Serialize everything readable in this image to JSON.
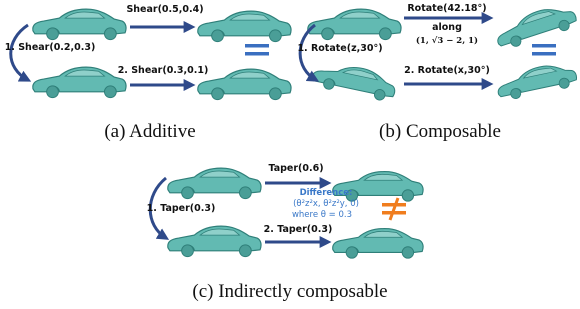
{
  "panels": [
    {
      "caption": "(a) Additive",
      "direct": "Shear(0.5,0.4)",
      "step1": "1. Shear(0.2,0.3)",
      "step2": "2. Shear(0.3,0.1)"
    },
    {
      "caption": "(b) Composable",
      "direct": "Rotate(42.18°)",
      "direct_along": "along",
      "direct_axis": "(1, √3 − 2, 1)",
      "step1": "1. Rotate(z,30°)",
      "step2": "2. Rotate(x,30°)"
    },
    {
      "caption": "(c) Indirectly composable",
      "direct": "Taper(0.6)",
      "step1": "1. Taper(0.3)",
      "step2": "2. Taper(0.3)",
      "difference_title": "Difference:",
      "difference_formula": "(θ²z²x, θ²z²y, 0)",
      "difference_note": "where θ = 0.3"
    }
  ]
}
